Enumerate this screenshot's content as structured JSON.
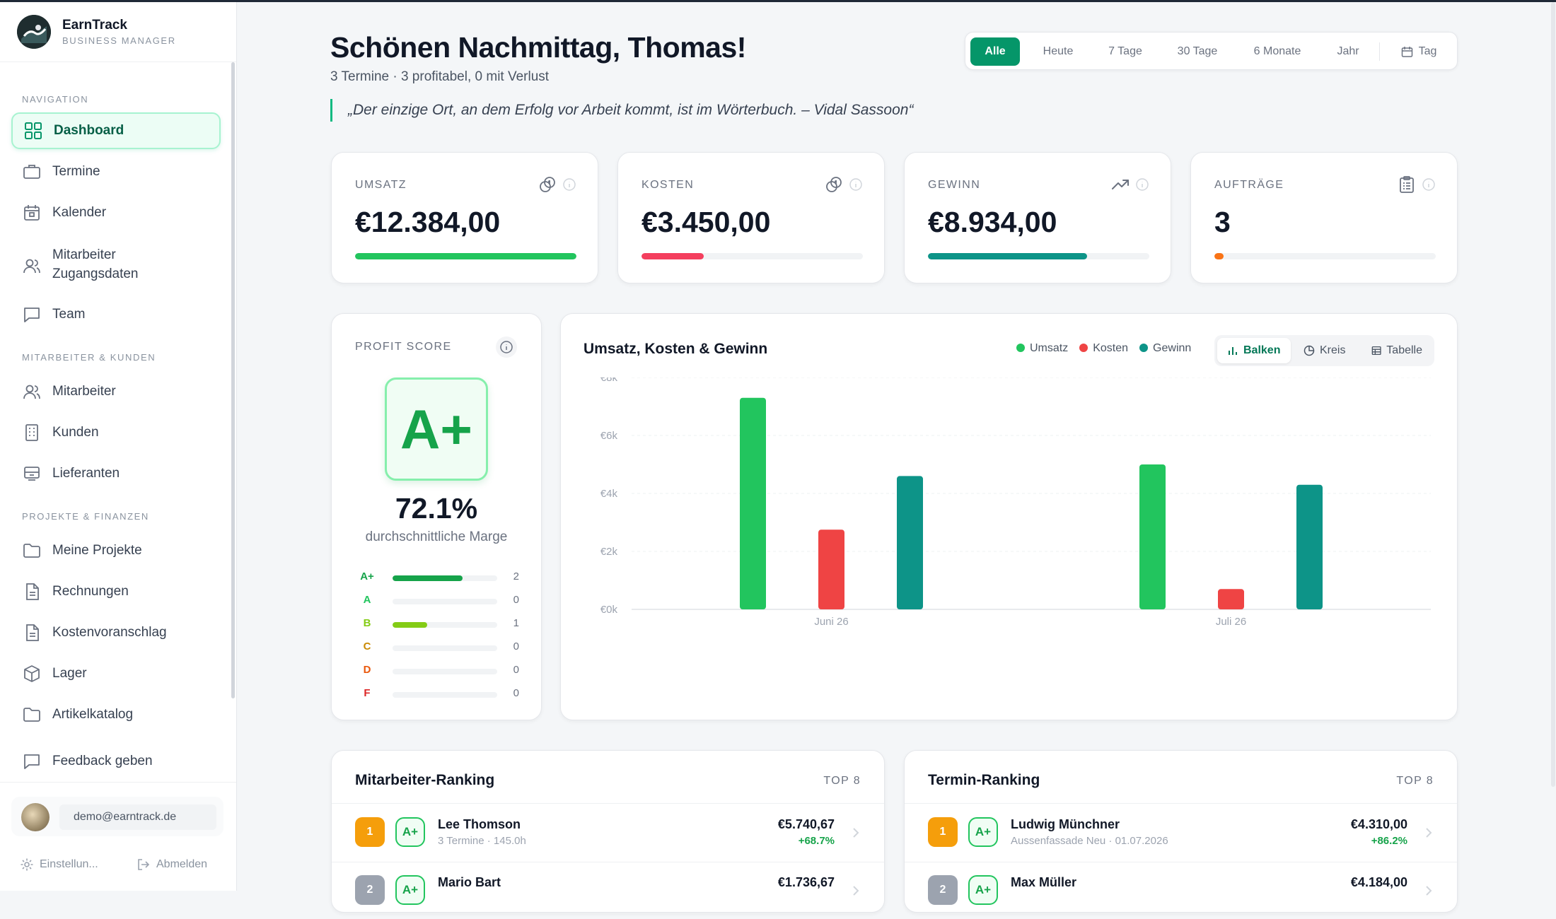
{
  "brand": {
    "name": "EarnTrack",
    "subtitle": "BUSINESS MANAGER"
  },
  "sidebar": {
    "sections": [
      "NAVIGATION",
      "MITARBEITER & KUNDEN",
      "PROJEKTE & FINANZEN"
    ],
    "items": [
      {
        "label": "Dashboard",
        "icon": "grid-icon"
      },
      {
        "label": "Termine",
        "icon": "briefcase-icon"
      },
      {
        "label": "Kalender",
        "icon": "calendar-icon"
      },
      {
        "label": "Mitarbeiter\nZugangsdaten",
        "icon": "users-icon"
      },
      {
        "label": "Team",
        "icon": "chat-icon"
      },
      {
        "label": "Mitarbeiter",
        "icon": "users-icon"
      },
      {
        "label": "Kunden",
        "icon": "building-icon"
      },
      {
        "label": "Lieferanten",
        "icon": "truck-icon"
      },
      {
        "label": "Meine Projekte",
        "icon": "folder-icon"
      },
      {
        "label": "Rechnungen",
        "icon": "file-icon"
      },
      {
        "label": "Kostenvoranschlag",
        "icon": "file-icon"
      },
      {
        "label": "Lager",
        "icon": "box-icon"
      },
      {
        "label": "Artikelkatalog",
        "icon": "folder-icon"
      },
      {
        "label": "Feedback geben",
        "icon": "chat-icon"
      }
    ],
    "user_email": "demo@earntrack.de",
    "settings_label": "Einstellun...",
    "logout_label": "Abmelden"
  },
  "header": {
    "greeting": "Schönen Nachmittag, Thomas!",
    "summary": "3 Termine · 3 profitabel, 0 mit Verlust",
    "quote": "„Der einzige Ort, an dem Erfolg vor Arbeit kommt, ist im Wörterbuch. – Vidal Sassoon“"
  },
  "filters": {
    "options": [
      "Alle",
      "Heute",
      "7 Tage",
      "30 Tage",
      "6 Monate",
      "Jahr",
      "Tag"
    ],
    "selected": "Alle"
  },
  "kpis": [
    {
      "label": "UMSATZ",
      "value": "€12.384,00",
      "progress": 1.0,
      "color": "#22c55e",
      "icon": "coins-icon"
    },
    {
      "label": "KOSTEN",
      "value": "€3.450,00",
      "progress": 0.28,
      "color": "#f43f5e",
      "icon": "coins-icon"
    },
    {
      "label": "GEWINN",
      "value": "€8.934,00",
      "progress": 0.72,
      "color": "#0d9488",
      "icon": "trending-up-icon"
    },
    {
      "label": "AUFTRÄGE",
      "value": "3",
      "progress": 0.03,
      "color": "#f97316",
      "icon": "clipboard-icon"
    }
  ],
  "profit_score": {
    "label": "PROFIT SCORE",
    "grade": "A+",
    "margin": "72.1%",
    "margin_label": "durchschnittliche Marge",
    "distribution": [
      {
        "grade": "A+",
        "count": "2",
        "fraction": 0.67,
        "color": "#16a34a"
      },
      {
        "grade": "A",
        "count": "0",
        "fraction": 0,
        "color": "#22c55e"
      },
      {
        "grade": "B",
        "count": "1",
        "fraction": 0.33,
        "color": "#84cc16"
      },
      {
        "grade": "C",
        "count": "0",
        "fraction": 0,
        "color": "#ca8a04"
      },
      {
        "grade": "D",
        "count": "0",
        "fraction": 0,
        "color": "#ea580c"
      },
      {
        "grade": "F",
        "count": "0",
        "fraction": 0,
        "color": "#dc2626"
      }
    ]
  },
  "chart_panel": {
    "title": "Umsatz, Kosten & Gewinn",
    "views": [
      "Balken",
      "Kreis",
      "Tabelle"
    ],
    "selected_view": "Balken"
  },
  "chart_data": {
    "type": "bar",
    "categories": [
      "Juni 26",
      "Juli 26"
    ],
    "series": [
      {
        "name": "Umsatz",
        "color": "#22c55e",
        "values": [
          7300,
          5000
        ]
      },
      {
        "name": "Kosten",
        "color": "#ef4444",
        "values": [
          2750,
          700
        ]
      },
      {
        "name": "Gewinn",
        "color": "#0d9488",
        "values": [
          4600,
          4300
        ]
      }
    ],
    "yticks": [
      "€0k",
      "€2k",
      "€4k",
      "€6k",
      "€8k"
    ],
    "ylim": [
      0,
      8000
    ],
    "grid": true,
    "legend": "top-right"
  },
  "employee_ranking": {
    "title": "Mitarbeiter-Ranking",
    "badge": "TOP 8",
    "rows": [
      {
        "rank": "1",
        "grade": "A+",
        "name": "Lee Thomson",
        "detail": "3 Termine · 145.0h",
        "amount": "€5.740,67",
        "delta": "+68.7%"
      },
      {
        "rank": "2",
        "grade": "A+",
        "name": "Mario Bart",
        "detail": "",
        "amount": "€1.736,67",
        "delta": ""
      }
    ]
  },
  "appointment_ranking": {
    "title": "Termin-Ranking",
    "badge": "TOP 8",
    "rows": [
      {
        "rank": "1",
        "grade": "A+",
        "name": "Ludwig Münchner",
        "detail": "Aussenfassade Neu · 01.07.2026",
        "amount": "€4.310,00",
        "delta": "+86.2%"
      },
      {
        "rank": "2",
        "grade": "A+",
        "name": "Max Müller",
        "detail": "",
        "amount": "€4.184,00",
        "delta": ""
      }
    ]
  }
}
